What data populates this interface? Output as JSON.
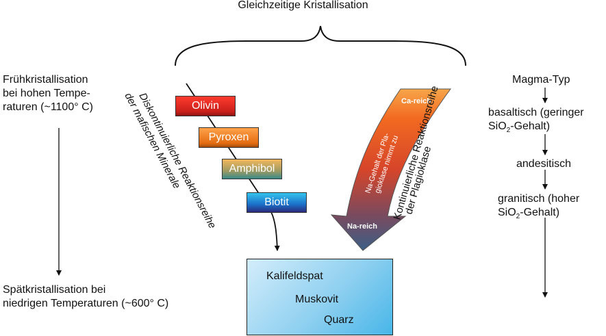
{
  "title": "Gleichzeitige Kristallisation",
  "left": {
    "early": [
      "Frühkristallisation",
      "bei hohen Tempe-",
      "raturen (~1100° C)"
    ],
    "late": [
      "Spätkristallisation bei",
      "niedrigen Temperaturen (~600° C)"
    ]
  },
  "discontinuous": {
    "line1": "Diskontinuierliche Reaktionsreihe",
    "line2": "der mafischen Minerale",
    "minerals": [
      "Olivin",
      "Pyroxen",
      "Amphibol",
      "Biotit"
    ]
  },
  "continuous": {
    "top": "Ca-reich",
    "bottom": "Na-reich",
    "inner1": "Na-Gehalt der Pla-",
    "inner2": "gioklase nimmt zu",
    "outer1": "Kontinuierliche Reaktionsreihe",
    "outer2": "der Plagioklase"
  },
  "final_minerals": [
    "Kalifeldspat",
    "Muskovit",
    "Quarz"
  ],
  "magma": {
    "heading": "Magma-Typ",
    "basaltic": [
      "basaltisch (geringer",
      "SiO",
      "2",
      "-Gehalt)"
    ],
    "andesitic": "andesitisch",
    "granitic": [
      "granitisch (hoher",
      "SiO",
      "2",
      "-Gehalt)"
    ]
  },
  "colors": {
    "olivin": "#d9261f",
    "pyroxen": "#f07c1c",
    "amphibol": "#5e9a86",
    "biotit": "#1e74cc",
    "arrow_top": "#f36b21",
    "arrow_bottom": "#3c5f86",
    "box": "#7fcaf0"
  }
}
